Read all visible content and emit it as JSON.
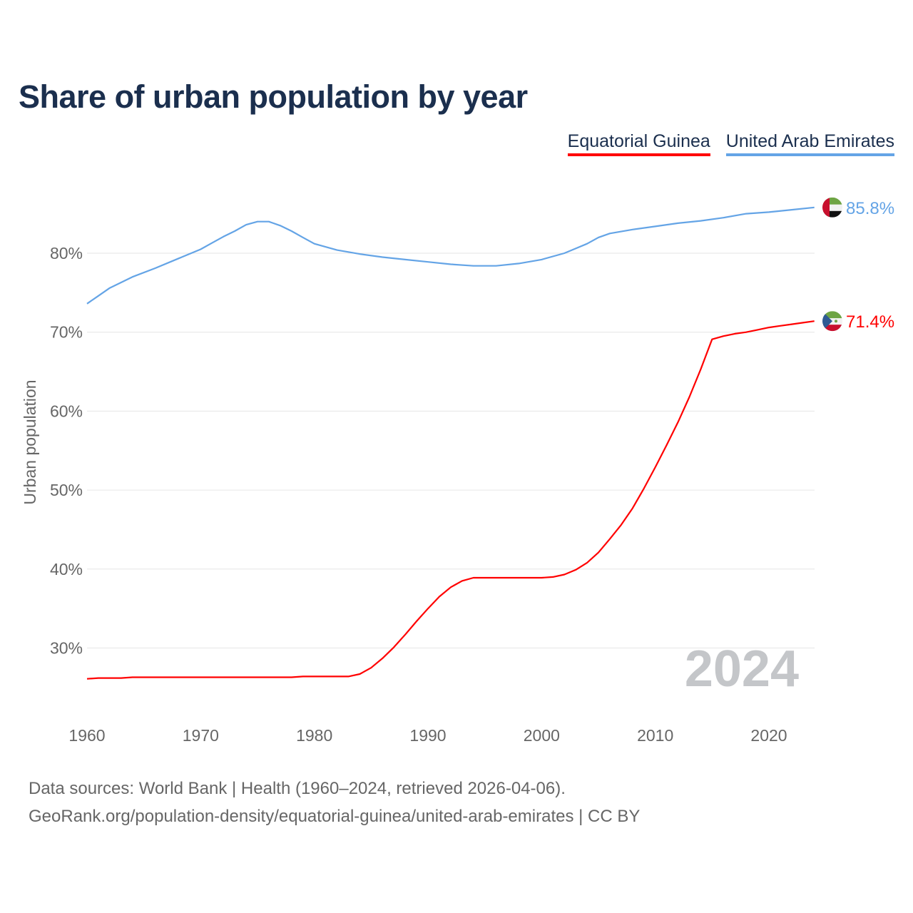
{
  "title": "Share of urban population by year",
  "footer": {
    "line1": "Data sources: World Bank | Health (1960–2024, retrieved 2026-04-06).",
    "line2": "GeoRank.org/population-density/equatorial-guinea/united-arab-emirates | CC BY"
  },
  "chart_data": {
    "type": "line",
    "title": "Share of urban population by year",
    "xlabel": "",
    "ylabel": "Urban population",
    "xlim": [
      1960,
      2024
    ],
    "ylim": [
      22,
      92
    ],
    "x_ticks": [
      "1960",
      "1970",
      "1980",
      "1990",
      "2000",
      "2010",
      "2020"
    ],
    "y_ticks": [
      "30%",
      "40%",
      "50%",
      "60%",
      "70%",
      "80%"
    ],
    "year_watermark": "2024",
    "grid": true,
    "legend_position": "top-right",
    "series": [
      {
        "name": "Equatorial Guinea",
        "color": "#ff0000",
        "flag": "equatorial-guinea-flag",
        "end_label": "71.4%",
        "points": [
          [
            1960,
            26.1
          ],
          [
            1961,
            26.2
          ],
          [
            1963,
            26.2
          ],
          [
            1964,
            26.3
          ],
          [
            1970,
            26.3
          ],
          [
            1978,
            26.3
          ],
          [
            1979,
            26.4
          ],
          [
            1983,
            26.4
          ],
          [
            1984,
            26.7
          ],
          [
            1985,
            27.5
          ],
          [
            1986,
            28.7
          ],
          [
            1987,
            30.1
          ],
          [
            1988,
            31.7
          ],
          [
            1989,
            33.4
          ],
          [
            1990,
            35.0
          ],
          [
            1991,
            36.5
          ],
          [
            1992,
            37.7
          ],
          [
            1993,
            38.5
          ],
          [
            1994,
            38.9
          ],
          [
            1996,
            38.9
          ],
          [
            1998,
            38.9
          ],
          [
            2000,
            38.9
          ],
          [
            2001,
            39.0
          ],
          [
            2002,
            39.3
          ],
          [
            2003,
            39.9
          ],
          [
            2004,
            40.8
          ],
          [
            2005,
            42.1
          ],
          [
            2006,
            43.8
          ],
          [
            2007,
            45.6
          ],
          [
            2008,
            47.7
          ],
          [
            2009,
            50.2
          ],
          [
            2010,
            52.9
          ],
          [
            2011,
            55.7
          ],
          [
            2012,
            58.6
          ],
          [
            2013,
            61.8
          ],
          [
            2014,
            65.3
          ],
          [
            2015,
            69.1
          ],
          [
            2016,
            69.5
          ],
          [
            2017,
            69.8
          ],
          [
            2018,
            70.0
          ],
          [
            2019,
            70.3
          ],
          [
            2020,
            70.6
          ],
          [
            2021,
            70.8
          ],
          [
            2022,
            71.0
          ],
          [
            2023,
            71.2
          ],
          [
            2024,
            71.4
          ]
        ]
      },
      {
        "name": "United Arab Emirates",
        "color": "#64a4e6",
        "flag": "uae-flag",
        "end_label": "85.8%",
        "points": [
          [
            1960,
            73.6
          ],
          [
            1961,
            74.6
          ],
          [
            1962,
            75.6
          ],
          [
            1963,
            76.3
          ],
          [
            1964,
            77.0
          ],
          [
            1966,
            78.1
          ],
          [
            1968,
            79.3
          ],
          [
            1970,
            80.5
          ],
          [
            1971,
            81.3
          ],
          [
            1972,
            82.1
          ],
          [
            1973,
            82.8
          ],
          [
            1974,
            83.6
          ],
          [
            1975,
            84.0
          ],
          [
            1976,
            84.0
          ],
          [
            1977,
            83.5
          ],
          [
            1978,
            82.8
          ],
          [
            1979,
            82.0
          ],
          [
            1980,
            81.2
          ],
          [
            1982,
            80.4
          ],
          [
            1984,
            79.9
          ],
          [
            1986,
            79.5
          ],
          [
            1988,
            79.2
          ],
          [
            1990,
            78.9
          ],
          [
            1992,
            78.6
          ],
          [
            1994,
            78.4
          ],
          [
            1996,
            78.4
          ],
          [
            1998,
            78.7
          ],
          [
            2000,
            79.2
          ],
          [
            2002,
            80.0
          ],
          [
            2003,
            80.6
          ],
          [
            2004,
            81.2
          ],
          [
            2005,
            82.0
          ],
          [
            2006,
            82.5
          ],
          [
            2008,
            83.0
          ],
          [
            2010,
            83.4
          ],
          [
            2012,
            83.8
          ],
          [
            2014,
            84.1
          ],
          [
            2016,
            84.5
          ],
          [
            2018,
            85.0
          ],
          [
            2020,
            85.2
          ],
          [
            2022,
            85.5
          ],
          [
            2024,
            85.8
          ]
        ]
      }
    ]
  }
}
